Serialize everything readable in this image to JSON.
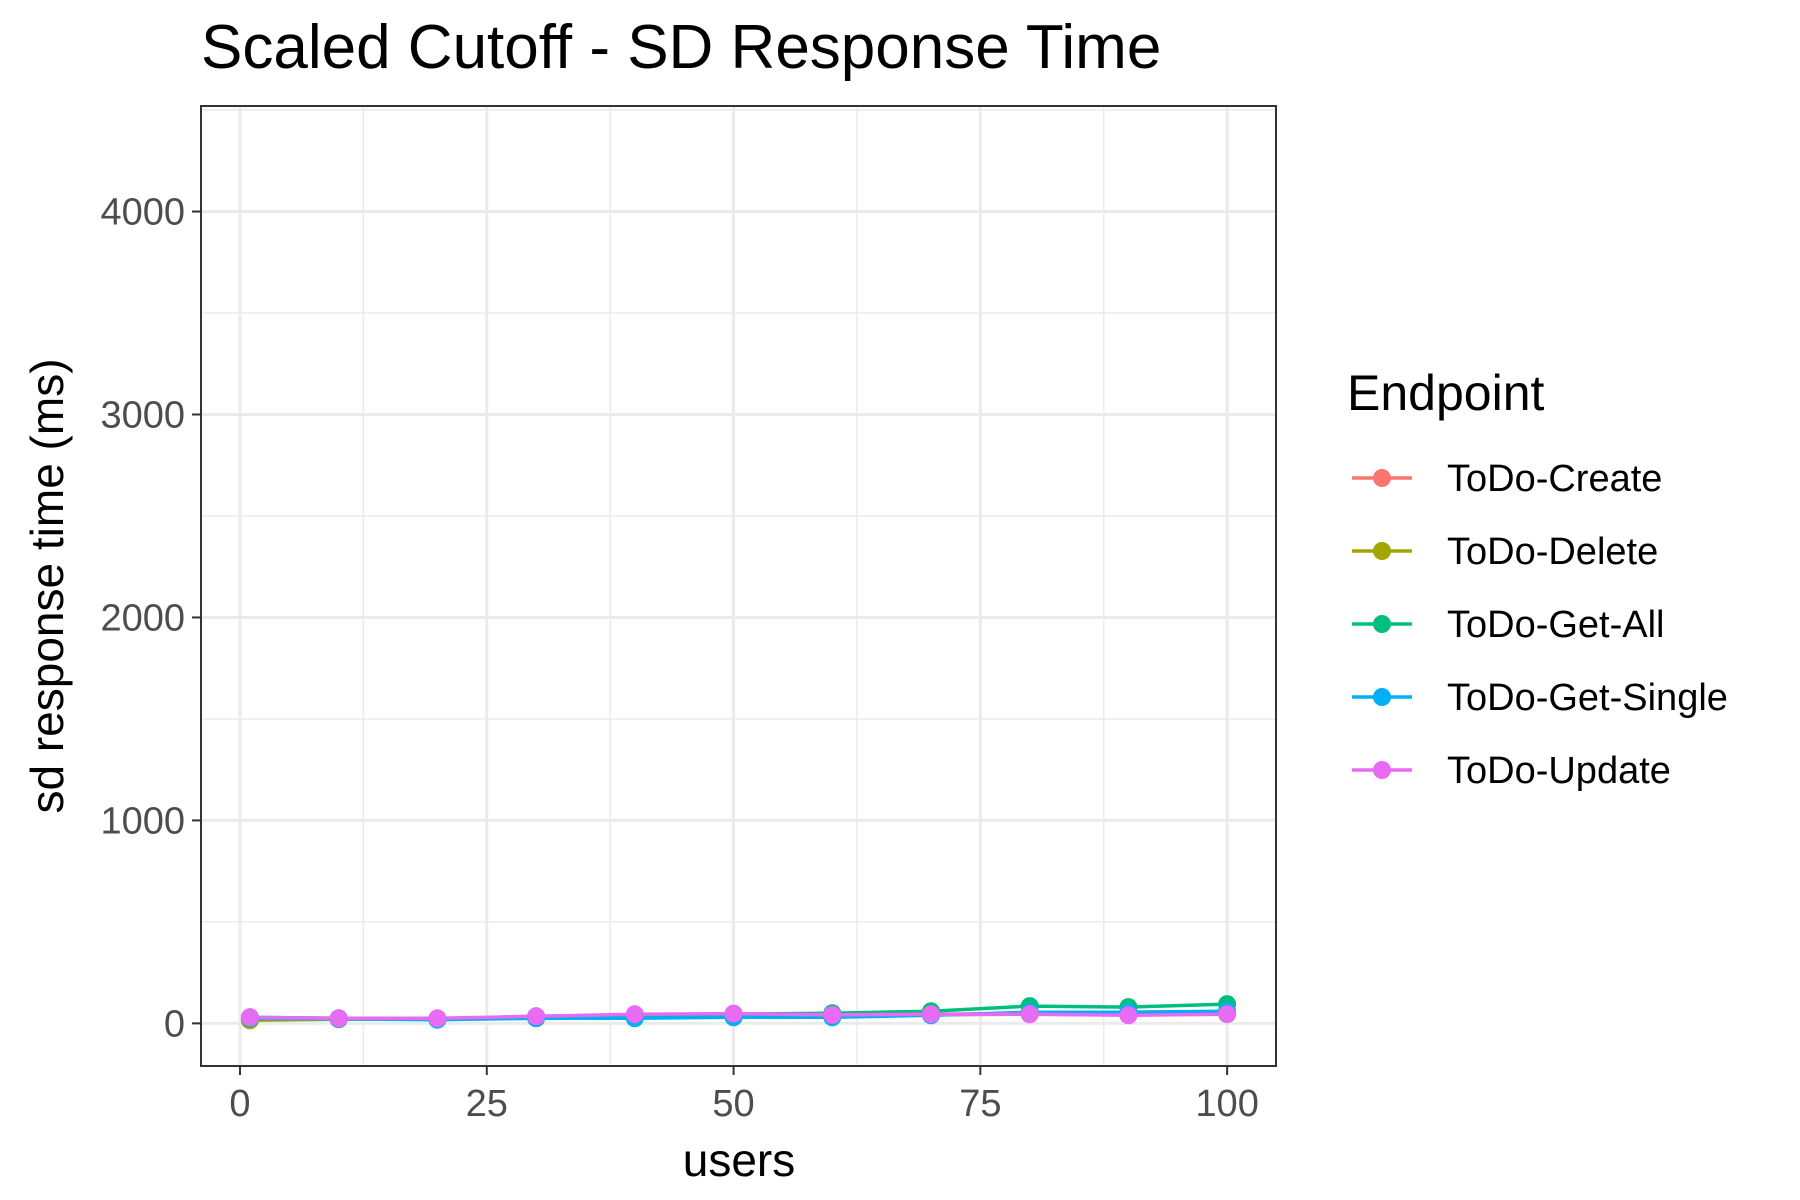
{
  "chart_data": {
    "type": "line",
    "title": "Scaled Cutoff - SD Response Time",
    "xlabel": "users",
    "ylabel": "sd response time (ms)",
    "xlim": [
      -3.95,
      104.95
    ],
    "ylim": [
      -210,
      4520
    ],
    "x_ticks": [
      0,
      25,
      50,
      75,
      100
    ],
    "x_tick_labels": [
      "0",
      "25",
      "50",
      "75",
      "100"
    ],
    "x_minor_ticks": [
      12.5,
      37.5,
      62.5,
      87.5
    ],
    "y_ticks": [
      0,
      1000,
      2000,
      3000,
      4000
    ],
    "y_tick_labels": [
      "0",
      "1000",
      "2000",
      "3000",
      "4000"
    ],
    "y_minor_ticks": [
      500,
      1500,
      2500,
      3500,
      4500
    ],
    "grid": true,
    "legend": {
      "title": "Endpoint",
      "placement": "right"
    },
    "x": [
      1,
      10,
      20,
      30,
      40,
      50,
      60,
      70,
      80,
      90,
      100
    ],
    "series": [
      {
        "name": "ToDo-Create",
        "color": "#F8766D",
        "values": [
          25,
          22,
          20,
          30,
          35,
          40,
          38,
          42,
          45,
          43,
          48
        ]
      },
      {
        "name": "ToDo-Delete",
        "color": "#A3A500",
        "values": [
          15,
          20,
          22,
          30,
          38,
          40,
          40,
          45,
          48,
          45,
          50
        ]
      },
      {
        "name": "ToDo-Get-All",
        "color": "#00BF7D",
        "values": [
          30,
          25,
          22,
          35,
          40,
          45,
          50,
          60,
          85,
          80,
          95
        ]
      },
      {
        "name": "ToDo-Get-Single",
        "color": "#00B0F6",
        "values": [
          25,
          22,
          18,
          25,
          25,
          30,
          30,
          40,
          55,
          55,
          60
        ]
      },
      {
        "name": "ToDo-Update",
        "color": "#E76BF3",
        "values": [
          30,
          25,
          25,
          35,
          45,
          48,
          42,
          45,
          45,
          40,
          45
        ]
      }
    ]
  }
}
